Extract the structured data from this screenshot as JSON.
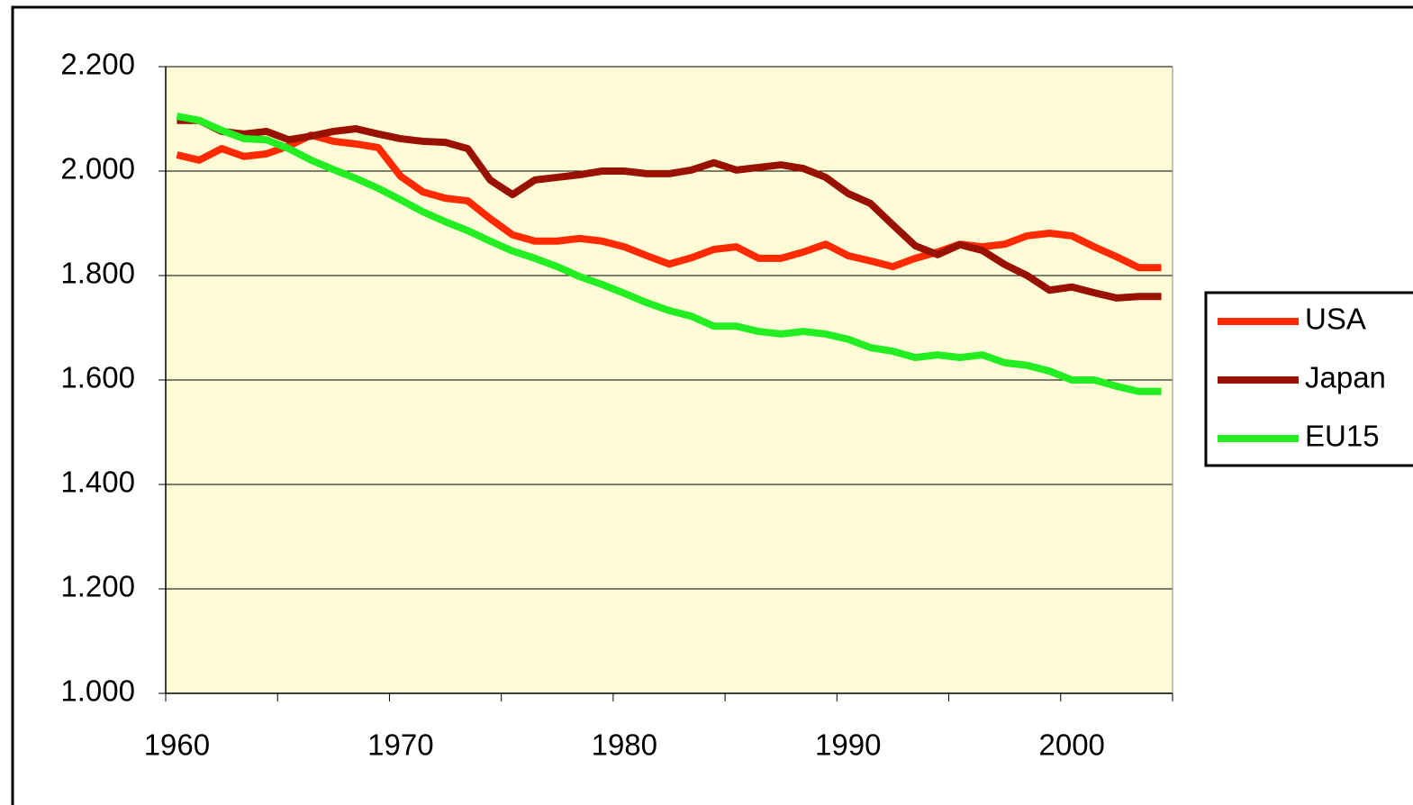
{
  "chart_data": {
    "type": "line",
    "categories": [
      "1960",
      null,
      null,
      null,
      null,
      null,
      null,
      null,
      null,
      null,
      "1970",
      null,
      null,
      null,
      null,
      null,
      null,
      null,
      null,
      null,
      "1980",
      null,
      null,
      null,
      null,
      null,
      null,
      null,
      null,
      null,
      "1990",
      null,
      null,
      null,
      null,
      null,
      null,
      null,
      null,
      null,
      "2000",
      null,
      null,
      null,
      null
    ],
    "series": [
      {
        "name": "USA",
        "color": "#ff2a00",
        "values": [
          2031,
          2021,
          2043,
          2028,
          2033,
          2048,
          2069,
          2057,
          2052,
          2045,
          1990,
          1960,
          1948,
          1943,
          1909,
          1878,
          1866,
          1866,
          1871,
          1866,
          1855,
          1838,
          1822,
          1834,
          1850,
          1855,
          1833,
          1833,
          1845,
          1860,
          1838,
          1828,
          1817,
          1833,
          1845,
          1860,
          1855,
          1860,
          1876,
          1881,
          1876,
          1855,
          1836,
          1815,
          1815
        ]
      },
      {
        "name": "Japan",
        "color": "#991100",
        "values": [
          2097,
          2097,
          2076,
          2071,
          2076,
          2060,
          2067,
          2076,
          2081,
          2071,
          2062,
          2057,
          2055,
          2043,
          1983,
          1955,
          1983,
          1988,
          1993,
          2000,
          2000,
          1995,
          1995,
          2002,
          2016,
          2002,
          2007,
          2012,
          2005,
          1988,
          1957,
          1938,
          1897,
          1857,
          1840,
          1859,
          1848,
          1821,
          1800,
          1772,
          1778,
          1767,
          1757,
          1760,
          1760
        ]
      },
      {
        "name": "EU15",
        "color": "#22ee22",
        "values": [
          2105,
          2097,
          2078,
          2062,
          2060,
          2043,
          2021,
          2003,
          1986,
          1967,
          1945,
          1922,
          1903,
          1886,
          1866,
          1847,
          1833,
          1817,
          1798,
          1783,
          1766,
          1748,
          1733,
          1722,
          1703,
          1703,
          1693,
          1688,
          1693,
          1688,
          1678,
          1662,
          1655,
          1643,
          1648,
          1643,
          1648,
          1633,
          1628,
          1617,
          1600,
          1600,
          1588,
          1578,
          1578
        ]
      }
    ],
    "ylim": [
      1000,
      2200
    ],
    "yticks": [
      {
        "value": 1000,
        "label": "1.000"
      },
      {
        "value": 1200,
        "label": "1.200"
      },
      {
        "value": 1400,
        "label": "1.400"
      },
      {
        "value": 1600,
        "label": "1.600"
      },
      {
        "value": 1800,
        "label": "1.800"
      },
      {
        "value": 2000,
        "label": "2.000"
      },
      {
        "value": 2200,
        "label": "2.200"
      }
    ],
    "grid": true,
    "legend": "right"
  }
}
